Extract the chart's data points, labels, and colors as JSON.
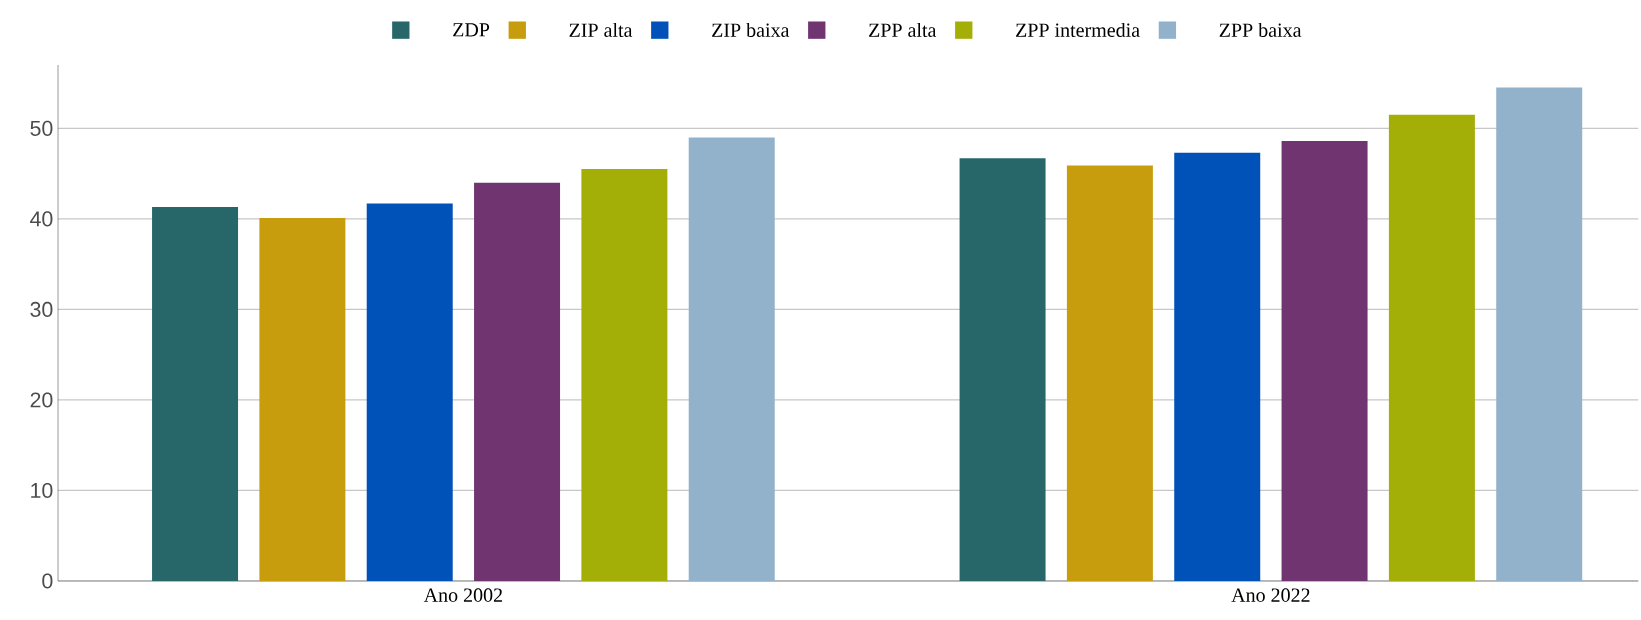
{
  "chart_data": {
    "type": "bar",
    "categories": [
      "Ano 2002",
      "Ano 2022"
    ],
    "series": [
      {
        "name": "ZDP",
        "color": "#276769",
        "values": [
          41.3,
          46.7
        ]
      },
      {
        "name": "ZIP alta",
        "color": "#c79d0d",
        "values": [
          40.1,
          45.9
        ]
      },
      {
        "name": "ZIP baixa",
        "color": "#0052b9",
        "values": [
          41.7,
          47.3
        ]
      },
      {
        "name": "ZPP alta",
        "color": "#703471",
        "values": [
          44.0,
          48.6
        ]
      },
      {
        "name": "ZPP intermedia",
        "color": "#a3ae07",
        "values": [
          45.5,
          51.5
        ]
      },
      {
        "name": "ZPP baixa",
        "color": "#92b2cc",
        "values": [
          49.0,
          54.5
        ]
      }
    ],
    "ylim": [
      0,
      57
    ],
    "yticks": [
      0,
      10,
      20,
      30,
      40,
      50
    ],
    "grid": "y",
    "legend": "top"
  }
}
